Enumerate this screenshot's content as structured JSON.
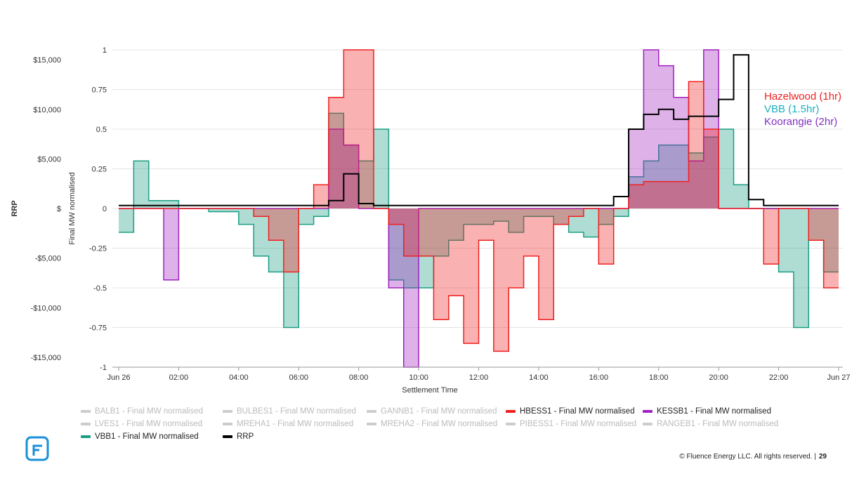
{
  "chart_data": {
    "type": "area",
    "xlabel": "Settlement Time",
    "ylabel_left": "RRP",
    "ylabel_right": "Final MW normalised",
    "x_ticks": [
      "Jun 26",
      "02:00",
      "04:00",
      "06:00",
      "08:00",
      "10:00",
      "12:00",
      "14:00",
      "16:00",
      "18:00",
      "20:00",
      "22:00",
      "Jun 27"
    ],
    "rrp_ticks": [
      "$15,000",
      "$10,000",
      "$5,000",
      "$",
      "-$5,000",
      "-$10,000",
      "-$15,000"
    ],
    "rrp_tick_values": [
      15000,
      10000,
      5000,
      0,
      -5000,
      -10000,
      -15000
    ],
    "mw_ticks": [
      "1",
      "0.75",
      "0.5",
      "0.25",
      "0",
      "-0.25",
      "-0.5",
      "-0.75",
      "-1"
    ],
    "mw_range": [
      -1,
      1
    ],
    "rrp_range": [
      -16000,
      16000
    ],
    "x_step_hours": 0.5,
    "grid": true,
    "series": [
      {
        "name": "VBB1 - Final MW normalised",
        "color": "#1a9e84",
        "axis": "mw",
        "values": [
          -0.15,
          0.3,
          0.05,
          0.05,
          0,
          0,
          -0.02,
          -0.02,
          -0.1,
          -0.3,
          -0.4,
          -0.75,
          -0.1,
          -0.05,
          0.6,
          0.4,
          0.3,
          0.5,
          -0.45,
          -0.5,
          -0.5,
          -0.3,
          -0.2,
          -0.1,
          -0.1,
          -0.08,
          -0.15,
          -0.05,
          -0.05,
          -0.1,
          -0.15,
          -0.18,
          -0.1,
          -0.05,
          0.2,
          0.3,
          0.4,
          0.4,
          0.35,
          0.45,
          0.5,
          0.15,
          0,
          0,
          -0.4,
          -0.75,
          -0.2,
          -0.4
        ]
      },
      {
        "name": "KESSB1 - Final MW normalised",
        "color": "#a020c0",
        "axis": "mw",
        "values": [
          0,
          0,
          0,
          -0.45,
          0,
          0,
          0,
          0,
          0,
          0,
          0,
          0,
          0,
          0,
          0.5,
          0.4,
          0,
          0,
          -0.5,
          -1,
          0,
          0,
          0,
          0,
          0,
          0,
          0,
          0,
          0,
          0,
          0,
          0,
          0,
          0,
          0.5,
          1,
          0.9,
          0.7,
          0.3,
          1,
          0,
          0,
          0,
          0,
          0,
          0,
          0,
          0
        ]
      },
      {
        "name": "HBESS1 - Final MW normalised",
        "color": "#f02020",
        "axis": "mw",
        "values": [
          0,
          0,
          0,
          0,
          0,
          0,
          0,
          0,
          0,
          -0.05,
          -0.2,
          -0.4,
          0,
          0.15,
          0.7,
          1,
          1,
          0,
          -0.1,
          -0.3,
          -0.3,
          -0.7,
          -0.55,
          -0.85,
          -0.2,
          -0.9,
          -0.5,
          -0.3,
          -0.7,
          -0.1,
          -0.05,
          0,
          -0.35,
          0,
          0.15,
          0.17,
          0.17,
          0.17,
          0.8,
          0.5,
          0,
          0,
          0,
          -0.35,
          0,
          0,
          -0.2,
          -0.5
        ]
      },
      {
        "name": "RRP",
        "color": "#000000",
        "axis": "rrp",
        "values": [
          300,
          300,
          300,
          300,
          300,
          300,
          300,
          300,
          300,
          300,
          300,
          300,
          300,
          300,
          800,
          3500,
          500,
          300,
          300,
          300,
          300,
          300,
          300,
          300,
          300,
          300,
          300,
          300,
          300,
          300,
          300,
          300,
          300,
          1200,
          8000,
          9500,
          10000,
          9000,
          9300,
          9300,
          11000,
          15500,
          900,
          300,
          300,
          300,
          300,
          300
        ]
      }
    ],
    "legend": [
      {
        "label": "BALB1 - Final MW normalised",
        "active": false
      },
      {
        "label": "BULBES1 - Final MW normalised",
        "active": false
      },
      {
        "label": "GANNB1 - Final MW normalised",
        "active": false
      },
      {
        "label": "HBESS1 - Final MW normalised",
        "active": true,
        "color": "#f02020"
      },
      {
        "label": "KESSB1 - Final MW normalised",
        "active": true,
        "color": "#a020c0"
      },
      {
        "label": "LVES1 - Final MW normalised",
        "active": false
      },
      {
        "label": "MREHA1 - Final MW normalised",
        "active": false
      },
      {
        "label": "MREHA2 - Final MW normalised",
        "active": false
      },
      {
        "label": "PIBESS1 - Final MW normalised",
        "active": false
      },
      {
        "label": "RANGEB1 - Final MW normalised",
        "active": false
      },
      {
        "label": "VBB1 - Final MW normalised",
        "active": true,
        "color": "#1a9e84"
      },
      {
        "label": "RRP",
        "active": true,
        "color": "#000000"
      }
    ],
    "annotations": [
      {
        "text": "Hazelwood (1hr)",
        "color": "#f02020"
      },
      {
        "text": "VBB (1.5hr)",
        "color": "#1ab0c0"
      },
      {
        "text": "Koorangie (2hr)",
        "color": "#8030c0"
      }
    ]
  },
  "footer": {
    "copyright": "© Fluence Energy LLC. All rights reserved.  |",
    "page": "29"
  },
  "logo": {
    "text": "Fluence"
  }
}
